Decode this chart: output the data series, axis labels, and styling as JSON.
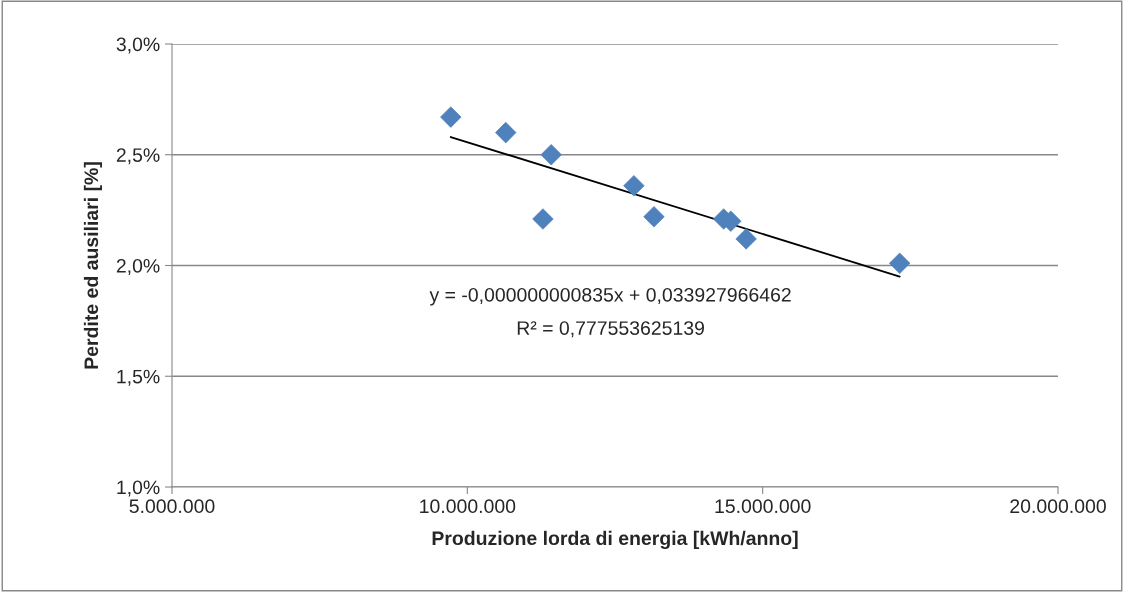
{
  "chart_data": {
    "type": "scatter",
    "xlabel": "Produzione lorda di energia [kWh/anno]",
    "ylabel": "Perdite ed ausiliari [%]",
    "series": [
      {
        "color": "#4f81bd",
        "marker": "diamond",
        "x": [
          9720000,
          10650000,
          11420000,
          11280000,
          12820000,
          13160000,
          14340000,
          14460000,
          14720000,
          17320000
        ],
        "values": [
          2.67,
          2.6,
          2.5,
          2.21,
          2.36,
          2.22,
          2.21,
          2.2,
          2.12,
          2.01
        ]
      },
      {
        "type": "line",
        "color": "#000000",
        "marker": "none",
        "line_style": "solid",
        "x": [
          9720000,
          17320000
        ],
        "values": [
          2.58,
          1.95
        ]
      }
    ],
    "xlim": [
      5000000,
      20000000
    ],
    "xticks": [
      {
        "value": 5000000,
        "label": "5.000.000"
      },
      {
        "value": 10000000,
        "label": "10.000.000"
      },
      {
        "value": 15000000,
        "label": "15.000.000"
      },
      {
        "value": 20000000,
        "label": "20.000.000"
      }
    ],
    "ylim": [
      1.0,
      3.0
    ],
    "yticks": [
      {
        "value": 1.0,
        "label": "1,0%"
      },
      {
        "value": 1.5,
        "label": "1,5%"
      },
      {
        "value": 2.0,
        "label": "2,0%"
      },
      {
        "value": 2.5,
        "label": "2,5%"
      },
      {
        "value": 3.0,
        "label": "3,0%"
      }
    ],
    "grid": "y",
    "legend": false,
    "annotations": [
      "y = -0,000000000835x + 0,033927966462",
      "R² = 0,777553625139"
    ]
  }
}
